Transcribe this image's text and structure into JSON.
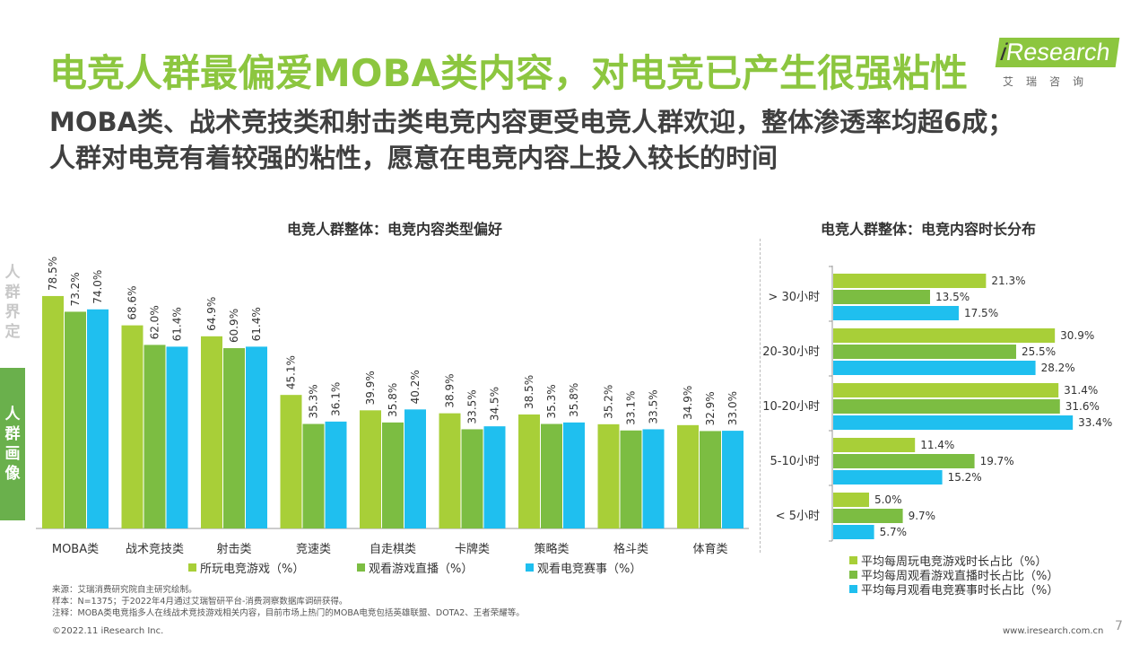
{
  "page": {
    "title": "电竞人群最偏爱MOBA类内容，对电竞已产生很强粘性",
    "subtitle_line1": "MOBA类、战术竞技类和射击类电竞内容更受电竞人群欢迎，整体渗透率均超6成；",
    "subtitle_line2": "人群对电竞有着较强的粘性，愿意在电竞内容上投入较长的时间",
    "logo_main": "Research",
    "logo_i": "i",
    "logo_sub": "艾瑞咨询",
    "side_tab_top": [
      "人",
      "群",
      "界",
      "定"
    ],
    "side_tab_bottom": [
      "人",
      "群",
      "画",
      "像"
    ],
    "notes": [
      "来源：艾瑞消费研究院自主研究绘制。",
      "样本：N=1375；于2022年4月通过艾瑞智研平台-消费洞察数据库调研获得。",
      "注释：MOBA类电竞指多人在线战术竞技游戏相关内容，目前市场上热门的MOBA电竞包括英雄联盟、DOTA2、王者荣耀等。"
    ],
    "copyright": "©2022.11 iResearch Inc.",
    "website": "www.iresearch.com.cn",
    "page_number": "7"
  },
  "colors": {
    "light_green": "#a8cf38",
    "mid_green": "#7cbd42",
    "blue": "#1fbfef",
    "title_green": "#8cc63f"
  },
  "chart_data": [
    {
      "type": "bar",
      "title": "电竞人群整体：电竞内容类型偏好",
      "categories": [
        "MOBA类",
        "战术竞技类",
        "射击类",
        "竞速类",
        "自走棋类",
        "卡牌类",
        "策略类",
        "格斗类",
        "体育类"
      ],
      "series": [
        {
          "name": "所玩电竞游戏（%）",
          "values": [
            78.5,
            68.6,
            64.9,
            45.1,
            39.9,
            38.9,
            38.5,
            35.2,
            34.9
          ]
        },
        {
          "name": "观看游戏直播（%）",
          "values": [
            73.2,
            62.0,
            60.9,
            35.3,
            35.8,
            33.5,
            35.3,
            33.1,
            32.9
          ]
        },
        {
          "name": "观看电竞赛事（%）",
          "values": [
            74.0,
            61.4,
            61.4,
            36.1,
            40.2,
            34.5,
            35.8,
            33.5,
            33.0
          ]
        }
      ],
      "value_format": "percent_1dp",
      "ylim": [
        0,
        100
      ],
      "legend": "bottom",
      "grid": false
    },
    {
      "type": "bar",
      "orientation": "horizontal",
      "title": "电竞人群整体：电竞内容时长分布",
      "categories": [
        "> 30小时",
        "20-30小时",
        "10-20小时",
        "5-10小时",
        "< 5小时"
      ],
      "series": [
        {
          "name": "平均每周玩电竞游戏时长占比（%）",
          "values": [
            21.3,
            30.9,
            31.4,
            11.4,
            5.0
          ]
        },
        {
          "name": "平均每周观看游戏直播时长占比（%）",
          "values": [
            13.5,
            25.5,
            31.6,
            19.7,
            9.7
          ]
        },
        {
          "name": "平均每月观看电竞赛事时长占比（%）",
          "values": [
            17.5,
            28.2,
            33.4,
            15.2,
            5.7
          ]
        }
      ],
      "value_format": "percent_1dp",
      "xlim": [
        0,
        40
      ],
      "legend": "bottom",
      "grid": false
    }
  ]
}
